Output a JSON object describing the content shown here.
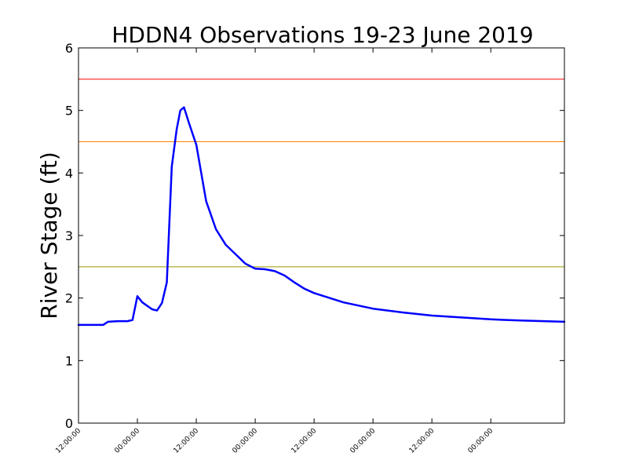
{
  "chart_data": {
    "type": "line",
    "title": "HDDN4 Observations 19-23 June 2019",
    "xlabel": "",
    "ylabel": "River Stage (ft)",
    "ylim": [
      0,
      6
    ],
    "yticks": [
      0,
      1,
      2,
      3,
      4,
      5,
      6
    ],
    "xlim": [
      "2019-06-19 12:00",
      "2019-06-23 15:00"
    ],
    "xticks": [
      {
        "x": "2019-06-19 12:00",
        "label": "12:00:00"
      },
      {
        "x": "2019-06-20 00:00",
        "label": "00:00:00"
      },
      {
        "x": "2019-06-20 12:00",
        "label": "12:00:00"
      },
      {
        "x": "2019-06-21 00:00",
        "label": "00:00:00"
      },
      {
        "x": "2019-06-21 12:00",
        "label": "12:00:00"
      },
      {
        "x": "2019-06-22 00:00",
        "label": "00:00:00"
      },
      {
        "x": "2019-06-22 12:00",
        "label": "12:00:00"
      },
      {
        "x": "2019-06-23 00:00",
        "label": "00:00:00"
      }
    ],
    "grid": false,
    "thresholds": [
      {
        "y": 5.5,
        "color": "#ff0000"
      },
      {
        "y": 4.5,
        "color": "#ff8000"
      },
      {
        "y": 2.5,
        "color": "#999900"
      }
    ],
    "series": [
      {
        "color": "#0000ff",
        "points": [
          [
            "2019-06-19 12:00",
            1.57
          ],
          [
            "2019-06-19 17:00",
            1.57
          ],
          [
            "2019-06-19 18:00",
            1.62
          ],
          [
            "2019-06-19 20:00",
            1.63
          ],
          [
            "2019-06-19 22:00",
            1.63
          ],
          [
            "2019-06-19 23:00",
            1.65
          ],
          [
            "2019-06-20 00:00",
            2.03
          ],
          [
            "2019-06-20 01:00",
            1.93
          ],
          [
            "2019-06-20 03:00",
            1.82
          ],
          [
            "2019-06-20 04:00",
            1.8
          ],
          [
            "2019-06-20 05:00",
            1.92
          ],
          [
            "2019-06-20 06:00",
            2.25
          ],
          [
            "2019-06-20 07:00",
            4.1
          ],
          [
            "2019-06-20 08:00",
            4.7
          ],
          [
            "2019-06-20 08:45",
            5.0
          ],
          [
            "2019-06-20 09:30",
            5.05
          ],
          [
            "2019-06-20 10:30",
            4.8
          ],
          [
            "2019-06-20 12:00",
            4.45
          ],
          [
            "2019-06-20 14:00",
            3.55
          ],
          [
            "2019-06-20 16:00",
            3.1
          ],
          [
            "2019-06-20 18:00",
            2.85
          ],
          [
            "2019-06-20 20:00",
            2.7
          ],
          [
            "2019-06-20 22:00",
            2.55
          ],
          [
            "2019-06-21 00:00",
            2.47
          ],
          [
            "2019-06-21 02:00",
            2.46
          ],
          [
            "2019-06-21 04:00",
            2.43
          ],
          [
            "2019-06-21 06:00",
            2.36
          ],
          [
            "2019-06-21 08:00",
            2.25
          ],
          [
            "2019-06-21 10:00",
            2.15
          ],
          [
            "2019-06-21 12:00",
            2.08
          ],
          [
            "2019-06-21 18:00",
            1.93
          ],
          [
            "2019-06-22 00:00",
            1.83
          ],
          [
            "2019-06-22 06:00",
            1.77
          ],
          [
            "2019-06-22 12:00",
            1.72
          ],
          [
            "2019-06-22 18:00",
            1.69
          ],
          [
            "2019-06-23 00:00",
            1.66
          ],
          [
            "2019-06-23 06:00",
            1.64
          ],
          [
            "2019-06-23 15:00",
            1.62
          ]
        ]
      }
    ]
  }
}
